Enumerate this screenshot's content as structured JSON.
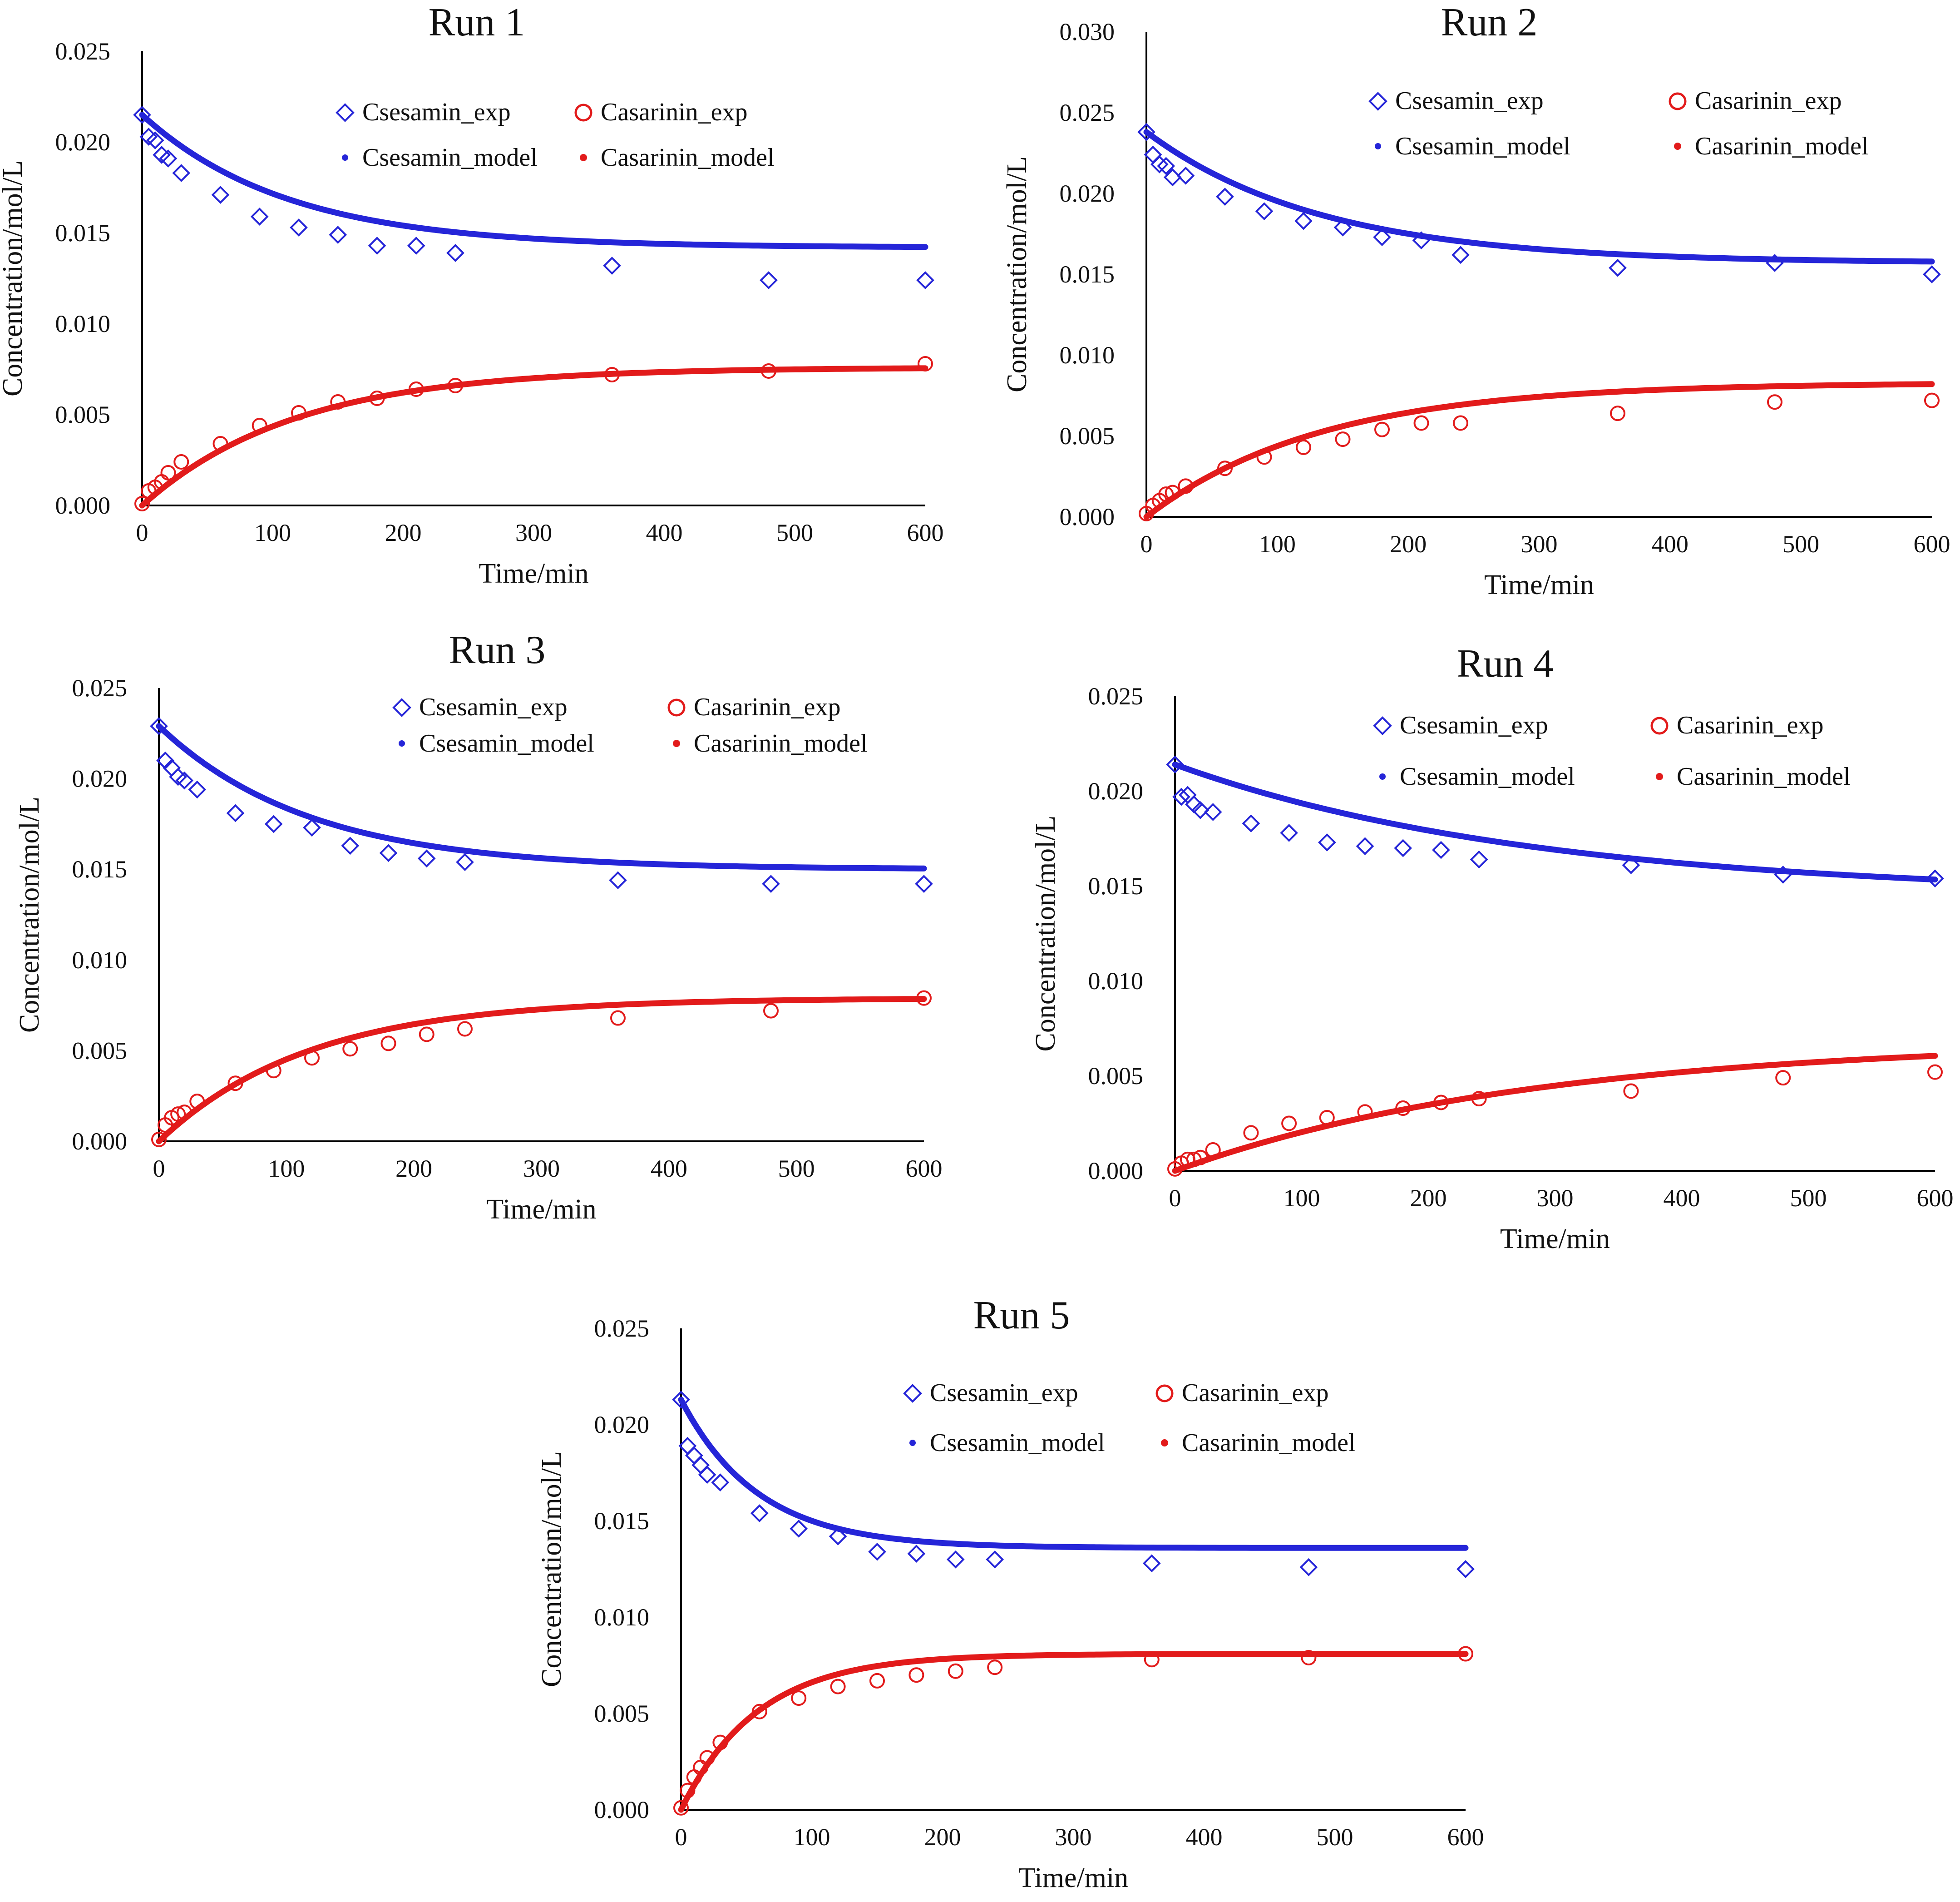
{
  "figure": {
    "background": "#ffffff",
    "colors": {
      "sesamin": "#2525d8",
      "asarinin": "#e21b1b",
      "axis": "#000000"
    },
    "legend_labels": {
      "sesamin_exp": "Csesamin_exp",
      "asarinin_exp": "Casarinin_exp",
      "sesamin_model": "Csesamin_model",
      "asarinin_model": "Casarinin_model"
    },
    "markers": {
      "sesamin_exp": "diamond-icon",
      "asarinin_exp": "circle-icon",
      "model": "dot-icon"
    }
  },
  "chart_data": [
    {
      "type": "scatter",
      "title": "Run 1",
      "xlabel": "Time/min",
      "ylabel": "Concentration/mol/L",
      "xlim": [
        0,
        600
      ],
      "ylim": [
        0,
        0.025
      ],
      "x_ticks": [
        0,
        100,
        200,
        300,
        400,
        500,
        600
      ],
      "y_ticks": [
        "0.000",
        "0.005",
        "0.010",
        "0.015",
        "0.020",
        "0.025"
      ],
      "legend_position": "top-right",
      "x": [
        0,
        5,
        10,
        15,
        20,
        30,
        60,
        90,
        120,
        150,
        180,
        210,
        240,
        360,
        480,
        600
      ],
      "series": [
        {
          "name": "Csesamin_exp",
          "marker": "diamond",
          "color": "#2525d8",
          "values": [
            0.0215,
            0.0203,
            0.0201,
            0.0193,
            0.0191,
            0.0183,
            0.0171,
            0.0159,
            0.0153,
            0.0149,
            0.0143,
            0.0143,
            0.0139,
            0.0132,
            0.0124,
            0.0124
          ]
        },
        {
          "name": "Casarinin_exp",
          "marker": "circle",
          "color": "#e21b1b",
          "values": [
            0.0001,
            0.0008,
            0.001,
            0.0013,
            0.0018,
            0.0024,
            0.0034,
            0.0044,
            0.0051,
            0.0057,
            0.0059,
            0.0064,
            0.0066,
            0.0072,
            0.0074,
            0.0078
          ]
        },
        {
          "name": "Csesamin_model",
          "type": "line",
          "color": "#2525d8",
          "c0": 0.0215,
          "cinf": 0.0142,
          "k": 0.009
        },
        {
          "name": "Casarinin_model",
          "type": "line",
          "color": "#e21b1b",
          "c0": 0.0,
          "cinf": 0.0076,
          "k": 0.0085
        }
      ]
    },
    {
      "type": "scatter",
      "title": "Run 2",
      "xlabel": "Time/min",
      "ylabel": "Concentration/mol/L",
      "xlim": [
        0,
        600
      ],
      "ylim": [
        0,
        0.03
      ],
      "x_ticks": [
        0,
        100,
        200,
        300,
        400,
        500,
        600
      ],
      "y_ticks": [
        "0.000",
        "0.005",
        "0.010",
        "0.015",
        "0.020",
        "0.025",
        "0.030"
      ],
      "legend_position": "top-right",
      "x": [
        0,
        5,
        10,
        15,
        20,
        30,
        60,
        90,
        120,
        150,
        180,
        210,
        240,
        360,
        480,
        600
      ],
      "series": [
        {
          "name": "Csesamin_exp",
          "marker": "diamond",
          "color": "#2525d8",
          "values": [
            0.0238,
            0.0224,
            0.0218,
            0.0217,
            0.021,
            0.0211,
            0.0198,
            0.0189,
            0.0183,
            0.0179,
            0.0173,
            0.0171,
            0.0162,
            0.0154,
            0.0157,
            0.015
          ]
        },
        {
          "name": "Casarinin_exp",
          "marker": "circle",
          "color": "#e21b1b",
          "values": [
            0.0002,
            0.0007,
            0.001,
            0.0014,
            0.0015,
            0.0019,
            0.003,
            0.0037,
            0.0043,
            0.0048,
            0.0054,
            0.0058,
            0.0058,
            0.0064,
            0.0071,
            0.0072
          ]
        },
        {
          "name": "Csesamin_model",
          "type": "line",
          "color": "#2525d8",
          "c0": 0.0238,
          "cinf": 0.0157,
          "k": 0.0075
        },
        {
          "name": "Casarinin_model",
          "type": "line",
          "color": "#e21b1b",
          "c0": 0.0,
          "cinf": 0.0083,
          "k": 0.0075
        }
      ]
    },
    {
      "type": "scatter",
      "title": "Run 3",
      "xlabel": "Time/min",
      "ylabel": "Concentration/mol/L",
      "xlim": [
        0,
        600
      ],
      "ylim": [
        0,
        0.025
      ],
      "x_ticks": [
        0,
        100,
        200,
        300,
        400,
        500,
        600
      ],
      "y_ticks": [
        "0.000",
        "0.005",
        "0.010",
        "0.015",
        "0.020",
        "0.025"
      ],
      "legend_position": "top-right",
      "x": [
        0,
        5,
        10,
        15,
        20,
        30,
        60,
        90,
        120,
        150,
        180,
        210,
        240,
        360,
        480,
        600
      ],
      "series": [
        {
          "name": "Csesamin_exp",
          "marker": "diamond",
          "color": "#2525d8",
          "values": [
            0.0229,
            0.021,
            0.0206,
            0.0201,
            0.0199,
            0.0194,
            0.0181,
            0.0175,
            0.0173,
            0.0163,
            0.0159,
            0.0156,
            0.0154,
            0.0144,
            0.0142,
            0.0142
          ]
        },
        {
          "name": "Casarinin_exp",
          "marker": "circle",
          "color": "#e21b1b",
          "values": [
            0.0001,
            0.0009,
            0.0013,
            0.0015,
            0.0016,
            0.0022,
            0.0032,
            0.0039,
            0.0046,
            0.0051,
            0.0054,
            0.0059,
            0.0062,
            0.0068,
            0.0072,
            0.0079
          ]
        },
        {
          "name": "Csesamin_model",
          "type": "line",
          "color": "#2525d8",
          "c0": 0.0229,
          "cinf": 0.015,
          "k": 0.0085
        },
        {
          "name": "Casarinin_model",
          "type": "line",
          "color": "#e21b1b",
          "c0": 0.0,
          "cinf": 0.0079,
          "k": 0.0085
        }
      ]
    },
    {
      "type": "scatter",
      "title": "Run 4",
      "xlabel": "Time/min",
      "ylabel": "Concentration/mol/L",
      "xlim": [
        0,
        600
      ],
      "ylim": [
        0,
        0.025
      ],
      "x_ticks": [
        0,
        100,
        200,
        300,
        400,
        500,
        600
      ],
      "y_ticks": [
        "0.000",
        "0.005",
        "0.010",
        "0.015",
        "0.020",
        "0.025"
      ],
      "legend_position": "top-right",
      "x": [
        0,
        5,
        10,
        15,
        20,
        30,
        60,
        90,
        120,
        150,
        180,
        210,
        240,
        360,
        480,
        600
      ],
      "series": [
        {
          "name": "Csesamin_exp",
          "marker": "diamond",
          "color": "#2525d8",
          "values": [
            0.0214,
            0.0197,
            0.0198,
            0.0193,
            0.019,
            0.0189,
            0.0183,
            0.0178,
            0.0173,
            0.0171,
            0.017,
            0.0169,
            0.0164,
            0.0161,
            0.0156,
            0.0154
          ]
        },
        {
          "name": "Casarinin_exp",
          "marker": "circle",
          "color": "#e21b1b",
          "values": [
            0.0001,
            0.0004,
            0.0006,
            0.0006,
            0.0007,
            0.0011,
            0.002,
            0.0025,
            0.0028,
            0.0031,
            0.0033,
            0.0036,
            0.0038,
            0.0042,
            0.0049,
            0.0052
          ]
        },
        {
          "name": "Csesamin_model",
          "type": "line",
          "color": "#2525d8",
          "c0": 0.0214,
          "cinf": 0.0145,
          "k": 0.0035
        },
        {
          "name": "Casarinin_model",
          "type": "line",
          "color": "#e21b1b",
          "c0": 0.0,
          "cinf": 0.0069,
          "k": 0.0035
        }
      ]
    },
    {
      "type": "scatter",
      "title": "Run 5",
      "xlabel": "Time/min",
      "ylabel": "Concentration/mol/L",
      "xlim": [
        0,
        600
      ],
      "ylim": [
        0,
        0.025
      ],
      "x_ticks": [
        0,
        100,
        200,
        300,
        400,
        500,
        600
      ],
      "y_ticks": [
        "0.000",
        "0.005",
        "0.010",
        "0.015",
        "0.020",
        "0.025"
      ],
      "legend_position": "top-right",
      "x": [
        0,
        5,
        10,
        15,
        20,
        30,
        60,
        90,
        120,
        150,
        180,
        210,
        240,
        360,
        480,
        600
      ],
      "series": [
        {
          "name": "Csesamin_exp",
          "marker": "diamond",
          "color": "#2525d8",
          "values": [
            0.0213,
            0.0189,
            0.0184,
            0.0179,
            0.0174,
            0.017,
            0.0154,
            0.0146,
            0.0142,
            0.0134,
            0.0133,
            0.013,
            0.013,
            0.0128,
            0.0126,
            0.0125
          ]
        },
        {
          "name": "Casarinin_exp",
          "marker": "circle",
          "color": "#e21b1b",
          "values": [
            0.0001,
            0.001,
            0.0017,
            0.0022,
            0.0027,
            0.0035,
            0.0051,
            0.0058,
            0.0064,
            0.0067,
            0.007,
            0.0072,
            0.0074,
            0.0078,
            0.0079,
            0.0081
          ]
        },
        {
          "name": "Csesamin_model",
          "type": "line",
          "color": "#2525d8",
          "c0": 0.0213,
          "cinf": 0.0136,
          "k": 0.017
        },
        {
          "name": "Casarinin_model",
          "type": "line",
          "color": "#e21b1b",
          "c0": 0.0,
          "cinf": 0.0081,
          "k": 0.017
        }
      ]
    }
  ]
}
